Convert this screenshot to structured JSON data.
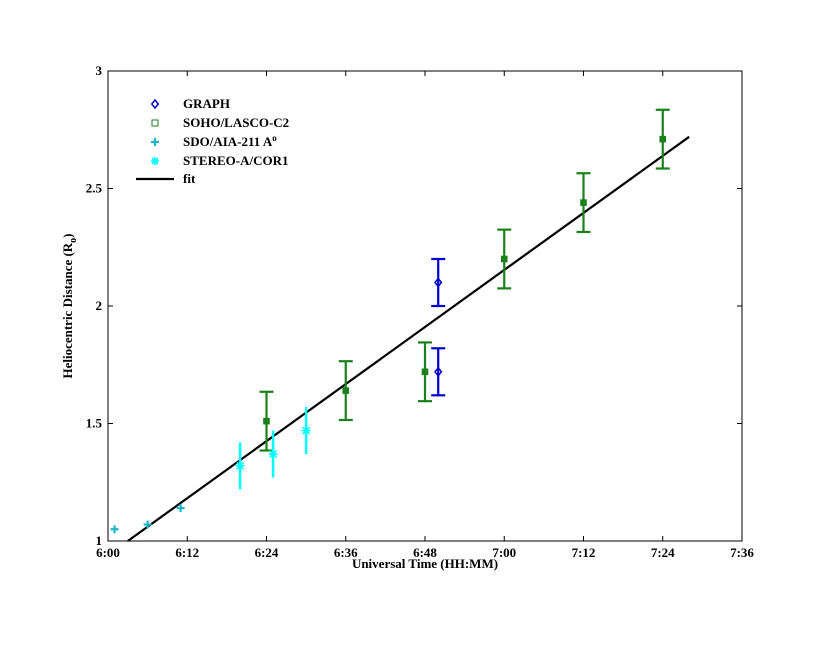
{
  "chart_data": {
    "type": "scatter",
    "xlabel": "Universal Time (HH:MM)",
    "ylabel": "Heliocentric Distance (R",
    "ylabel_sub": "o",
    "ylabel_close": ")",
    "xlim": [
      "6:00",
      "7:36"
    ],
    "ylim": [
      1,
      3
    ],
    "x_ticks": [
      "6:00",
      "6:12",
      "6:24",
      "6:36",
      "6:48",
      "7:00",
      "7:12",
      "7:24",
      "7:36"
    ],
    "y_ticks": [
      "1",
      "1.5",
      "2",
      "2.5",
      "3"
    ],
    "grid": false,
    "legend_position": "top-left",
    "series": [
      {
        "name": "GRAPH",
        "marker": "diamond",
        "color": "#0000cc",
        "points": [
          {
            "x": "6:50",
            "y": 2.1,
            "err": 0.1
          },
          {
            "x": "6:50",
            "y": 1.72,
            "err": 0.1
          }
        ]
      },
      {
        "name": "SOHO/LASCO-C2",
        "marker": "square",
        "color": "#1a801a",
        "points": [
          {
            "x": "6:24",
            "y": 1.51,
            "err": 0.125
          },
          {
            "x": "6:36",
            "y": 1.64,
            "err": 0.125
          },
          {
            "x": "6:48",
            "y": 1.72,
            "err": 0.125
          },
          {
            "x": "7:00",
            "y": 2.2,
            "err": 0.125
          },
          {
            "x": "7:12",
            "y": 2.44,
            "err": 0.125
          },
          {
            "x": "7:24",
            "y": 2.71,
            "err": 0.125
          }
        ]
      },
      {
        "name": "SDO/AIA-211 A",
        "name_sup": "o",
        "marker": "plus",
        "color": "#1fb5c9",
        "points": [
          {
            "x": "6:01",
            "y": 1.05
          },
          {
            "x": "6:06",
            "y": 1.07
          },
          {
            "x": "6:11",
            "y": 1.14
          }
        ]
      },
      {
        "name": "STEREO-A/COR1",
        "marker": "star",
        "color": "#00ffff",
        "points": [
          {
            "x": "6:20",
            "y": 1.32,
            "err": 0.1
          },
          {
            "x": "6:25",
            "y": 1.37,
            "err": 0.1
          },
          {
            "x": "6:30",
            "y": 1.47,
            "err": 0.1
          }
        ]
      },
      {
        "name": "fit",
        "marker": "line",
        "color": "#000000",
        "points": [
          {
            "x": "6:03",
            "y": 1.0
          },
          {
            "x": "7:28",
            "y": 2.72
          }
        ]
      }
    ]
  }
}
